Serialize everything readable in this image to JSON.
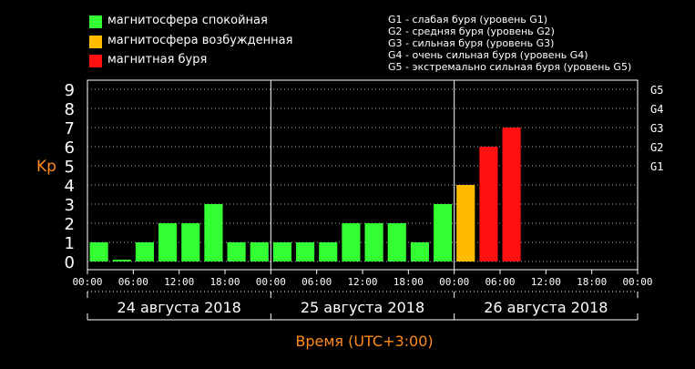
{
  "legend": {
    "items": [
      {
        "label": "магнитосфера спокойная",
        "color": "#33ff33"
      },
      {
        "label": "магнитосфера возбужденная",
        "color": "#ffbb00"
      },
      {
        "label": "магнитная буря",
        "color": "#ff1111"
      }
    ],
    "storm_levels": [
      "G1 - слабая буря (уровень G1)",
      "G2 - средняя буря (уровень G2)",
      "G3 - сильная буря (уровень G3)",
      "G4 - очень сильная буря (уровень G4)",
      "G5 - экстремально сильная буря (уровень G5)"
    ]
  },
  "chart_data": {
    "type": "bar",
    "ylabel": "Kp",
    "xlabel": "Время (UTC+3:00)",
    "ylim": [
      0,
      9
    ],
    "y_ticks": [
      "0",
      "1",
      "2",
      "3",
      "4",
      "5",
      "6",
      "7",
      "8",
      "9"
    ],
    "right_ticks": [
      {
        "label": "G1",
        "value": 5
      },
      {
        "label": "G2",
        "value": 6
      },
      {
        "label": "G3",
        "value": 7
      },
      {
        "label": "G4",
        "value": 8
      },
      {
        "label": "G5",
        "value": 9
      }
    ],
    "x_tick_labels": [
      "00:00",
      "06:00",
      "12:00",
      "18:00",
      "00:00",
      "06:00",
      "12:00",
      "18:00",
      "00:00",
      "06:00",
      "12:00",
      "18:00",
      "00:00"
    ],
    "days": [
      "24 августа 2018",
      "25 августа 2018",
      "26 августа 2018"
    ],
    "values": [
      1,
      0,
      1,
      2,
      2,
      3,
      1,
      1,
      1,
      1,
      1,
      2,
      2,
      2,
      1,
      3,
      4,
      6,
      7
    ],
    "colors": {
      "quiet": "#33ff33",
      "active": "#ffbb00",
      "storm": "#ff1111"
    },
    "grid": true
  }
}
